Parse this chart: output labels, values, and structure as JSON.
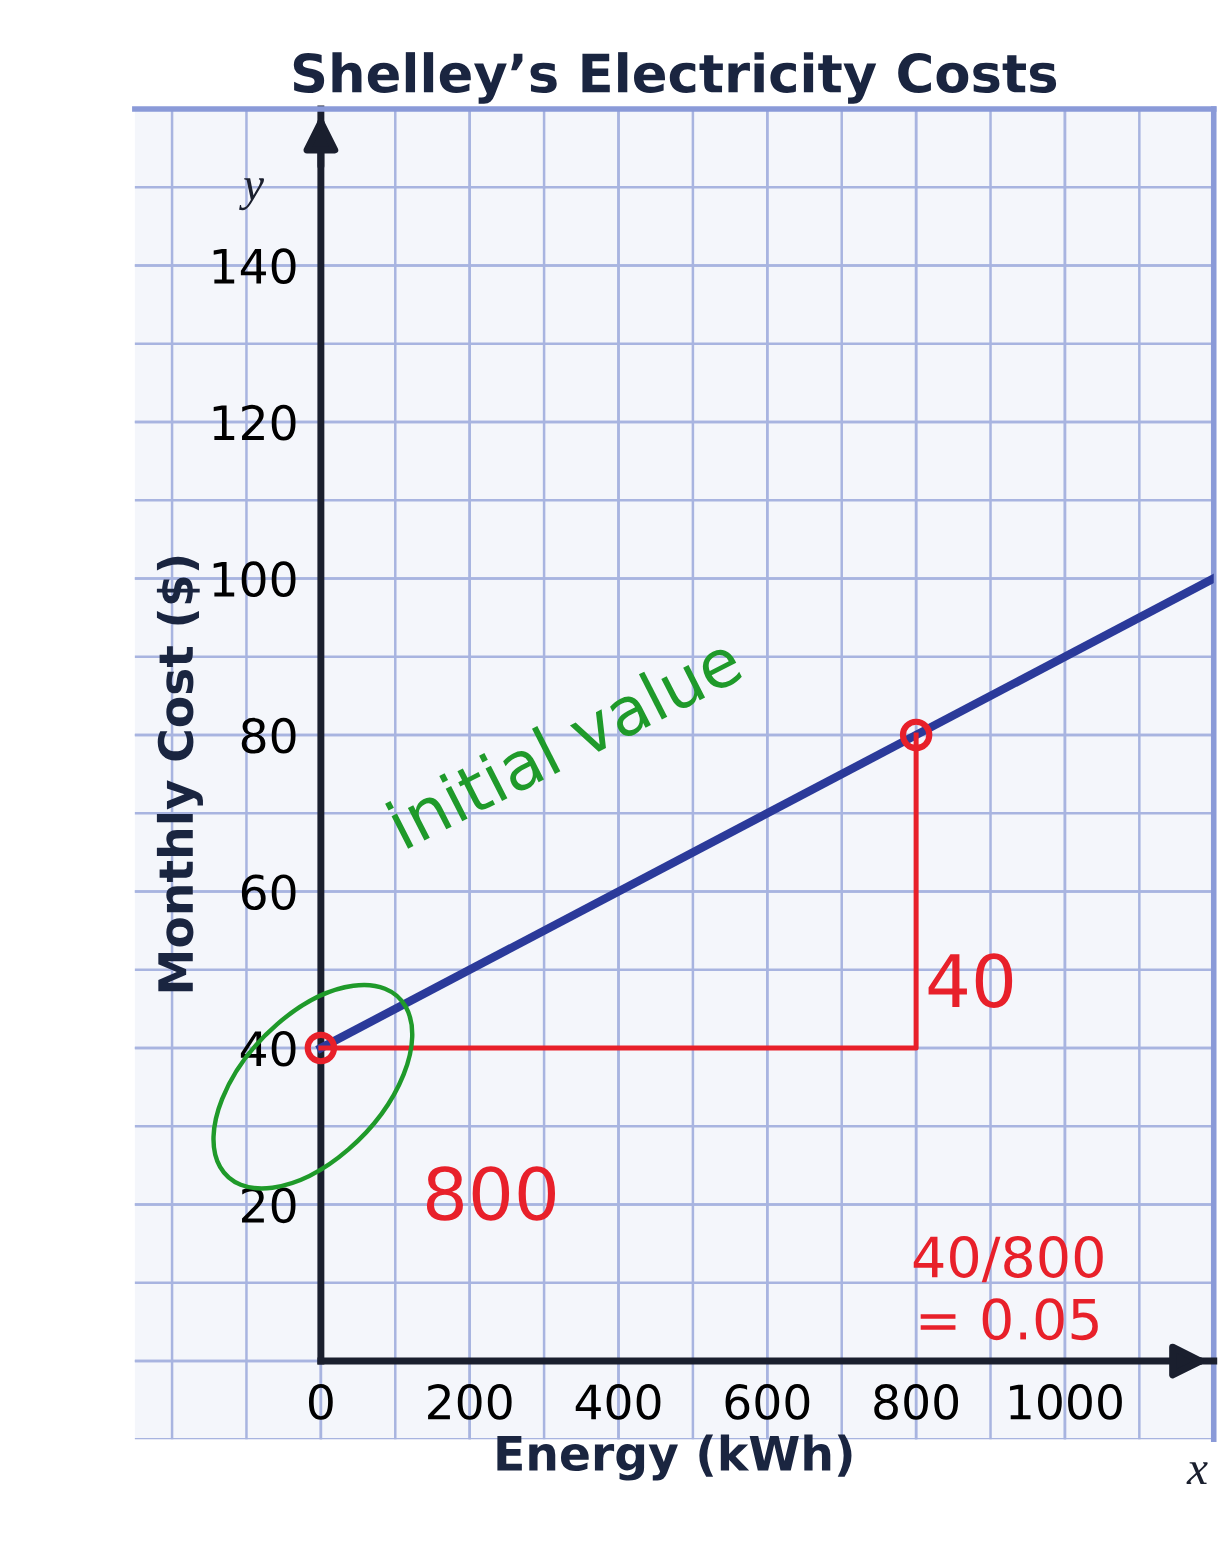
{
  "chart_data": {
    "type": "line",
    "title": "Shelley’s Electricity Costs",
    "xlabel": "Energy (kWh)",
    "ylabel": "Monthly Cost ($)",
    "series": [
      {
        "color": "#2b3a9a",
        "x": [
          0,
          1200
        ],
        "values": [
          40,
          100
        ]
      },
      {
        "type": "line",
        "color": "#e8202a",
        "x": [
          0,
          800,
          800
        ],
        "values": [
          40,
          40,
          80
        ]
      },
      {
        "type": "scatter",
        "color": "#e8202a",
        "marker": "circle",
        "x": [
          0,
          800
        ],
        "values": [
          40,
          80
        ]
      }
    ],
    "xlim": [
      -250,
      1200
    ],
    "ylim": [
      -10,
      160
    ],
    "xticks": [
      0,
      200,
      400,
      600,
      800,
      1000
    ],
    "yticks": [
      {
        "value": 0,
        "label": null
      },
      20,
      40,
      60,
      80,
      100,
      120,
      140
    ],
    "grid": true,
    "annotations": [
      "initial value",
      "800",
      "40",
      "40/800\n= 0.05",
      "x",
      "y"
    ]
  }
}
